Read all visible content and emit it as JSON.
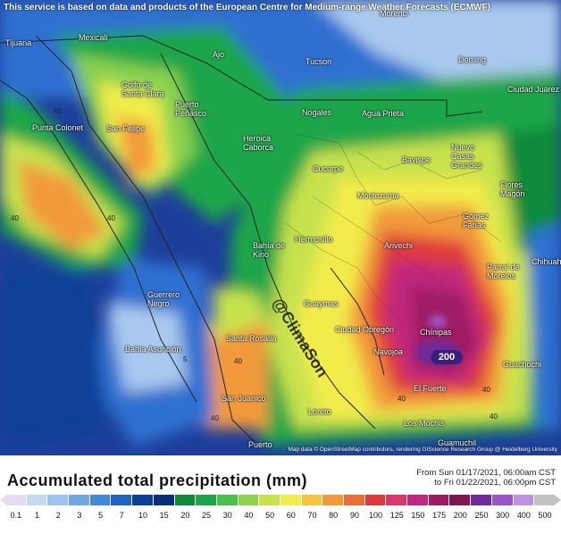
{
  "notice": "This service is based on data and products of the European Centre for Medium-range Weather Forecasts (ECMWF)",
  "cities": [
    {
      "name": "Tijuana"
    },
    {
      "name": "Mexicali"
    },
    {
      "name": "Ajo"
    },
    {
      "name": "Tucson"
    },
    {
      "name": "Morenci"
    },
    {
      "name": "Deming"
    },
    {
      "name": "Ciudad Juárez"
    },
    {
      "name": "Golfo de Santa Clara"
    },
    {
      "name": "Puerto Peñasco"
    },
    {
      "name": "Nogales"
    },
    {
      "name": "Agua Prieta"
    },
    {
      "name": "Punta Colonet"
    },
    {
      "name": "San Felipe"
    },
    {
      "name": "Heroica Caborca"
    },
    {
      "name": "Cucurpe"
    },
    {
      "name": "Bavispe"
    },
    {
      "name": "Nuevo Casas Grandes"
    },
    {
      "name": "Flores Magón"
    },
    {
      "name": "Moctezuma"
    },
    {
      "name": "Gómez Farías"
    },
    {
      "name": "Hermosillo"
    },
    {
      "name": "Arivechi"
    },
    {
      "name": "Bahía de Kino"
    },
    {
      "name": "Parral de Morelos"
    },
    {
      "name": "Chihuahua"
    },
    {
      "name": "Guerrero Negro"
    },
    {
      "name": "Guaymas"
    },
    {
      "name": "Ciudad Obregón"
    },
    {
      "name": "Chínipas"
    },
    {
      "name": "Santa Rosalía"
    },
    {
      "name": "Bahía Asunción"
    },
    {
      "name": "Navojoa"
    },
    {
      "name": "Guachochi"
    },
    {
      "name": "El Fuerte"
    },
    {
      "name": "San Juanico"
    },
    {
      "name": "Loreto"
    },
    {
      "name": "Los Mochis"
    },
    {
      "name": "Puerto"
    },
    {
      "name": "Guamuchil"
    }
  ],
  "watermark": "@ClimaSon",
  "peak_label": "200",
  "contour_labels": [
    "40",
    "40",
    "40",
    "40",
    "40",
    "5",
    "40",
    "40",
    "40"
  ],
  "credit": "Map data © OpenStreetMap contributors, rendering GIScience Research Group @ Heidelberg University",
  "legend": {
    "title": "Accumulated total precipitation (mm)",
    "from": "From Sun 01/17/2021, 06:00am CST",
    "to": "to Fri 01/22/2021, 06:00pm CST",
    "ticks": [
      "0.1",
      "1",
      "2",
      "3",
      "5",
      "7",
      "10",
      "15",
      "20",
      "25",
      "30",
      "40",
      "50",
      "60",
      "70",
      "80",
      "90",
      "100",
      "125",
      "150",
      "175",
      "200",
      "250",
      "300",
      "400",
      "500"
    ],
    "colors": [
      "#e5dcef",
      "#c4d9f2",
      "#9cc4ee",
      "#6fa7e3",
      "#4388d8",
      "#1f63c0",
      "#0c3f96",
      "#0a2f7a",
      "#0f8a3b",
      "#1aa64a",
      "#49bf4d",
      "#8bd24f",
      "#c7e24d",
      "#f2ec4c",
      "#f5c542",
      "#f29a3a",
      "#ec6b37",
      "#df3a3a",
      "#d8386a",
      "#c0277d",
      "#9d1b64",
      "#7c1750",
      "#6e2a9a",
      "#9b54c8",
      "#c091df",
      "#c2c2c2"
    ]
  }
}
